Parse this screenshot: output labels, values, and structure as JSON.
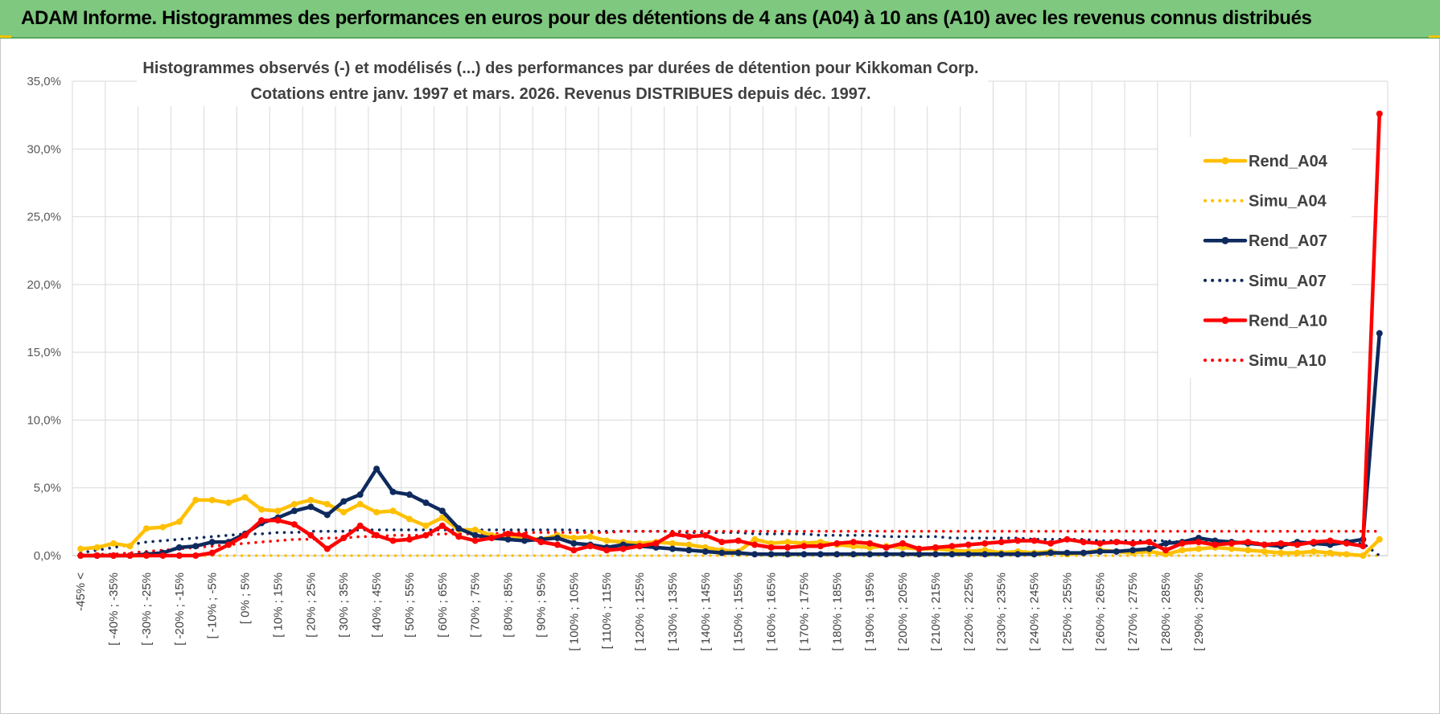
{
  "banner": {
    "title": "ADAM Informe. Histogrammes des performances en euros pour des détentions de 4 ans (A04) à 10 ans (A10) avec les revenus connus distribués",
    "background": "#7ec87f"
  },
  "chart_data": {
    "type": "line",
    "title_line1": "Histogrammes observés (-) et modélisés (...) des performances par durées de détention pour Kikkoman Corp.",
    "title_line2": "Cotations entre janv. 1997 et mars. 2026. Revenus DISTRIBUES depuis déc. 1997.",
    "ylim": [
      0,
      35
    ],
    "yticks": [
      0,
      5,
      10,
      15,
      20,
      25,
      30,
      35
    ],
    "ytick_labels": [
      "0,0%",
      "5,0%",
      "10,0%",
      "15,0%",
      "20,0%",
      "25,0%",
      "30,0%",
      "35,0%"
    ],
    "xtick_labels": [
      "-45% <",
      "[ -40% ; -35%",
      "[ -30% ; -25%",
      "[ -20% ; -15%",
      "[ -10% ; -5%",
      "[ 0% ; 5%",
      "[ 10% ; 15%",
      "[ 20% ; 25%",
      "[ 30% ; 35%",
      "[ 40% ; 45%",
      "[ 50% ; 55%",
      "[ 60% ; 65%",
      "[ 70% ; 75%",
      "[ 80% ; 85%",
      "[ 90% ; 95%",
      "[ 100% ; 105%",
      "[ 110% ; 115%",
      "[ 120% ; 125%",
      "[ 130% ; 135%",
      "[ 140% ; 145%",
      "[ 150% ; 155%",
      "[ 160% ; 165%",
      "[ 170% ; 175%",
      "[ 180% ; 185%",
      "[ 190% ; 195%",
      "[ 200% ; 205%",
      "[ 210% ; 215%",
      "[ 220% ; 225%",
      "[ 230% ; 235%",
      "[ 240% ; 245%",
      "[ 250% ; 255%",
      "[ 260% ; 265%",
      "[ 270% ; 275%",
      "[ 280% ; 285%",
      "[ 290% ; 295%"
    ],
    "grid": true,
    "legend_position": "right",
    "series": [
      {
        "name": "Rend_A04",
        "style": "solid",
        "color": "#ffc000",
        "values": [
          0.5,
          0.6,
          0.9,
          0.7,
          2.0,
          2.1,
          2.5,
          4.1,
          4.1,
          3.9,
          4.3,
          3.4,
          3.3,
          3.8,
          4.1,
          3.8,
          3.2,
          3.8,
          3.2,
          3.3,
          2.7,
          2.2,
          2.8,
          1.9,
          1.9,
          1.5,
          1.4,
          1.3,
          1.2,
          1.5,
          1.3,
          1.4,
          1.1,
          1.0,
          0.9,
          1.0,
          0.9,
          0.8,
          0.6,
          0.4,
          0.3,
          1.2,
          0.9,
          1.0,
          0.9,
          1.0,
          0.8,
          0.7,
          0.6,
          0.7,
          0.6,
          0.5,
          0.5,
          0.4,
          0.3,
          0.4,
          0.2,
          0.3,
          0.2,
          0.3,
          0.1,
          0.2,
          0.4,
          0.3,
          0.2,
          0.3,
          0.1,
          0.4,
          0.5,
          0.6,
          0.5,
          0.4,
          0.3,
          0.2,
          0.2,
          0.3,
          0.2,
          0.1,
          0.0,
          1.2
        ]
      },
      {
        "name": "Simu_A04",
        "style": "dotted",
        "color": "#ffc000",
        "values": [
          0.0,
          0.0,
          0.0,
          0.0,
          0.0,
          0.0,
          0.0,
          0.0,
          0.0,
          0.0,
          0.0,
          0.0,
          0.0,
          0.0,
          0.0,
          0.0,
          0.0,
          0.0,
          0.0,
          0.0,
          0.0,
          0.0,
          0.0,
          0.0,
          0.0,
          0.0,
          0.0,
          0.0,
          0.0,
          0.0,
          0.0,
          0.0,
          0.0,
          0.0,
          0.0,
          0.0,
          0.0,
          0.0,
          0.0,
          0.0,
          0.0,
          0.0,
          0.0,
          0.0,
          0.0,
          0.0,
          0.0,
          0.0,
          0.0,
          0.0,
          0.0,
          0.0,
          0.0,
          0.0,
          0.0,
          0.0,
          0.0,
          0.0,
          0.0,
          0.0,
          0.0,
          0.0,
          0.0,
          0.0,
          0.0,
          0.0,
          0.0,
          0.0,
          0.0,
          0.0,
          0.0,
          0.0,
          0.0,
          0.0,
          0.0,
          0.0,
          0.0,
          0.0,
          0.0,
          0.0
        ]
      },
      {
        "name": "Rend_A07",
        "style": "solid",
        "color": "#0e2a5e",
        "values": [
          0.0,
          0.0,
          0.0,
          0.0,
          0.1,
          0.2,
          0.6,
          0.7,
          1.0,
          1.0,
          1.6,
          2.4,
          2.8,
          3.3,
          3.6,
          3.0,
          4.0,
          4.5,
          6.4,
          4.7,
          4.5,
          3.9,
          3.3,
          2.0,
          1.5,
          1.3,
          1.2,
          1.1,
          1.2,
          1.3,
          0.9,
          0.8,
          0.6,
          0.8,
          0.7,
          0.6,
          0.5,
          0.4,
          0.3,
          0.2,
          0.2,
          0.1,
          0.1,
          0.1,
          0.1,
          0.1,
          0.1,
          0.1,
          0.1,
          0.1,
          0.1,
          0.1,
          0.1,
          0.1,
          0.1,
          0.1,
          0.1,
          0.1,
          0.1,
          0.2,
          0.2,
          0.2,
          0.3,
          0.3,
          0.4,
          0.5,
          0.9,
          1.0,
          1.3,
          1.1,
          1.0,
          0.9,
          0.8,
          0.7,
          1.0,
          0.9,
          0.8,
          1.0,
          1.2,
          16.4
        ]
      },
      {
        "name": "Simu_A07",
        "style": "dotted",
        "color": "#0e2a5e",
        "values": [
          0.2,
          0.4,
          0.6,
          0.8,
          1.0,
          1.1,
          1.2,
          1.3,
          1.4,
          1.5,
          1.6,
          1.6,
          1.7,
          1.7,
          1.8,
          1.8,
          1.8,
          1.9,
          1.9,
          1.9,
          1.9,
          1.9,
          1.9,
          1.9,
          1.9,
          1.9,
          1.9,
          1.9,
          1.9,
          1.9,
          1.9,
          1.8,
          1.8,
          1.8,
          1.8,
          1.8,
          1.8,
          1.7,
          1.7,
          1.7,
          1.7,
          1.6,
          1.6,
          1.6,
          1.6,
          1.5,
          1.5,
          1.5,
          1.5,
          1.4,
          1.4,
          1.4,
          1.4,
          1.3,
          1.3,
          1.3,
          1.3,
          1.3,
          1.2,
          1.2,
          1.2,
          1.2,
          1.1,
          1.1,
          1.1,
          1.1,
          1.1,
          1.0,
          1.0,
          1.0,
          1.0,
          1.0,
          0.9,
          0.9,
          0.9,
          0.9,
          0.9,
          0.9,
          0.9,
          0.0
        ]
      },
      {
        "name": "Rend_A10",
        "style": "solid",
        "color": "#ff0000",
        "values": [
          0.0,
          0.0,
          0.0,
          0.0,
          0.0,
          0.0,
          0.0,
          0.0,
          0.2,
          0.8,
          1.5,
          2.6,
          2.6,
          2.3,
          1.5,
          0.5,
          1.3,
          2.2,
          1.5,
          1.1,
          1.2,
          1.5,
          2.2,
          1.4,
          1.1,
          1.3,
          1.6,
          1.5,
          1.0,
          0.8,
          0.4,
          0.7,
          0.4,
          0.5,
          0.7,
          0.9,
          1.6,
          1.4,
          1.5,
          1.0,
          1.1,
          0.8,
          0.6,
          0.6,
          0.7,
          0.7,
          0.9,
          1.0,
          0.9,
          0.6,
          0.9,
          0.5,
          0.6,
          0.7,
          0.8,
          0.9,
          1.0,
          1.1,
          1.1,
          0.9,
          1.2,
          1.0,
          0.9,
          1.0,
          0.9,
          1.0,
          0.4,
          0.9,
          1.0,
          0.8,
          0.9,
          1.0,
          0.8,
          0.9,
          0.8,
          1.0,
          1.1,
          0.9,
          0.7,
          32.6
        ]
      },
      {
        "name": "Simu_A10",
        "style": "dotted",
        "color": "#ff0000",
        "values": [
          0.0,
          0.1,
          0.1,
          0.2,
          0.3,
          0.4,
          0.5,
          0.6,
          0.7,
          0.8,
          0.9,
          1.0,
          1.1,
          1.2,
          1.2,
          1.3,
          1.3,
          1.4,
          1.4,
          1.5,
          1.5,
          1.5,
          1.6,
          1.6,
          1.6,
          1.6,
          1.7,
          1.7,
          1.7,
          1.7,
          1.7,
          1.7,
          1.7,
          1.8,
          1.8,
          1.8,
          1.8,
          1.8,
          1.8,
          1.8,
          1.8,
          1.8,
          1.8,
          1.8,
          1.8,
          1.8,
          1.8,
          1.8,
          1.8,
          1.8,
          1.8,
          1.8,
          1.8,
          1.8,
          1.8,
          1.8,
          1.8,
          1.8,
          1.8,
          1.8,
          1.8,
          1.8,
          1.8,
          1.8,
          1.8,
          1.8,
          1.8,
          1.8,
          1.8,
          1.8,
          1.8,
          1.8,
          1.8,
          1.8,
          1.8,
          1.8,
          1.8,
          1.8,
          1.8,
          1.8
        ]
      }
    ]
  }
}
